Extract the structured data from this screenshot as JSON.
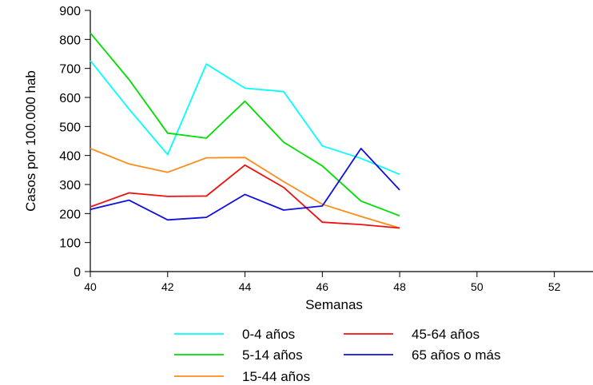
{
  "chart_data": {
    "type": "line",
    "xlabel": "Semanas",
    "ylabel": "Casos por 100.000 hab",
    "xlim": [
      40,
      53
    ],
    "ylim": [
      0,
      900
    ],
    "xticks": [
      40,
      42,
      44,
      46,
      48,
      50,
      52
    ],
    "yticks": [
      0,
      100,
      200,
      300,
      400,
      500,
      600,
      700,
      800,
      900
    ],
    "grid": false,
    "legend_position": "bottom",
    "x": [
      40,
      41,
      42,
      43,
      44,
      45,
      46,
      47,
      48
    ],
    "series": [
      {
        "name": "0-4 años",
        "color": "#00ffff",
        "values": [
          727,
          560,
          403,
          715,
          632,
          620,
          433,
          390,
          335
        ]
      },
      {
        "name": "5-14 años",
        "color": "#00dd00",
        "values": [
          822,
          662,
          477,
          460,
          587,
          446,
          364,
          243,
          192
        ]
      },
      {
        "name": "15-44 años",
        "color": "#ff8c1a",
        "values": [
          424,
          371,
          342,
          392,
          393,
          310,
          232,
          190,
          150
        ]
      },
      {
        "name": "45-64 años",
        "color": "#ee1111",
        "values": [
          223,
          271,
          259,
          260,
          367,
          290,
          170,
          162,
          150
        ]
      },
      {
        "name": "65 años o más",
        "color": "#1010dd",
        "values": [
          214,
          246,
          178,
          187,
          266,
          212,
          226,
          424,
          281
        ]
      }
    ]
  }
}
